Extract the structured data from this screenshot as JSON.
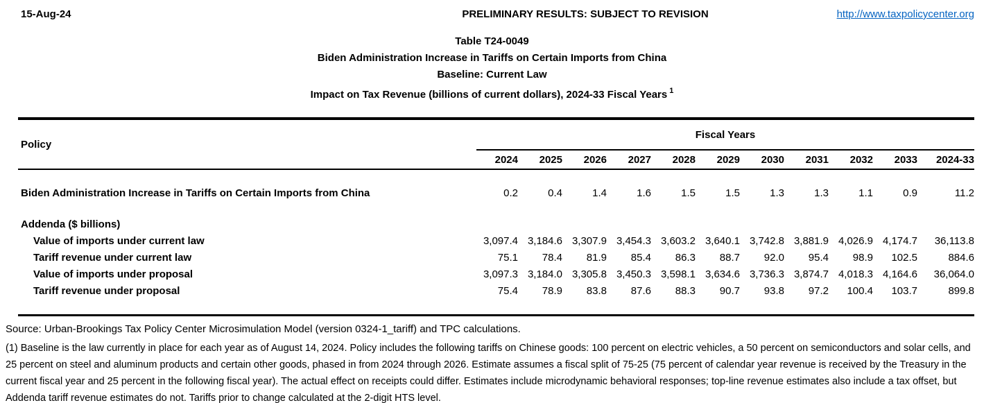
{
  "header": {
    "date": "15-Aug-24",
    "status": "PRELIMINARY RESULTS: SUBJECT TO REVISION",
    "link": "http://www.taxpolicycenter.org",
    "link_color": "#0563C1"
  },
  "title": {
    "line1": "Table T24-0049",
    "line2": "Biden Administration Increase in Tariffs on Certain Imports from China",
    "line3": "Baseline: Current Law",
    "line4": "Impact on Tax Revenue (billions of current dollars), 2024-33 Fiscal Years",
    "footnote_marker": "1"
  },
  "table": {
    "policy_header": "Policy",
    "group_header": "Fiscal Years",
    "columns": [
      "2024",
      "2025",
      "2026",
      "2027",
      "2028",
      "2029",
      "2030",
      "2031",
      "2032",
      "2033",
      "2024-33"
    ],
    "rows": [
      {
        "label": "Biden Administration Increase in Tariffs on Certain Imports from China",
        "style": "policy",
        "values": [
          "0.2",
          "0.4",
          "1.4",
          "1.6",
          "1.5",
          "1.5",
          "1.3",
          "1.3",
          "1.1",
          "0.9",
          "11.2"
        ]
      },
      {
        "label": "Addenda ($ billions)",
        "style": "section",
        "values": []
      },
      {
        "label": "Value of imports under current law",
        "style": "addendum",
        "values": [
          "3,097.4",
          "3,184.6",
          "3,307.9",
          "3,454.3",
          "3,603.2",
          "3,640.1",
          "3,742.8",
          "3,881.9",
          "4,026.9",
          "4,174.7",
          "36,113.8"
        ]
      },
      {
        "label": "Tariff revenue under current law",
        "style": "addendum",
        "values": [
          "75.1",
          "78.4",
          "81.9",
          "85.4",
          "86.3",
          "88.7",
          "92.0",
          "95.4",
          "98.9",
          "102.5",
          "884.6"
        ]
      },
      {
        "label": "Value of imports under proposal",
        "style": "addendum",
        "values": [
          "3,097.3",
          "3,184.0",
          "3,305.8",
          "3,450.3",
          "3,598.1",
          "3,634.6",
          "3,736.3",
          "3,874.7",
          "4,018.3",
          "4,164.6",
          "36,064.0"
        ]
      },
      {
        "label": "Tariff revenue under proposal",
        "style": "addendum",
        "values": [
          "75.4",
          "78.9",
          "83.8",
          "87.6",
          "88.3",
          "90.7",
          "93.8",
          "97.2",
          "100.4",
          "103.7",
          "899.8"
        ]
      }
    ]
  },
  "footer": {
    "source": "Source: Urban-Brookings Tax Policy Center Microsimulation Model (version 0324-1_tariff) and TPC calculations.",
    "footnote": "(1) Baseline is the law currently in place for each year as of August 14, 2024. Policy includes the following tariffs on Chinese goods: 100 percent on electric vehicles, a 50 percent on semiconductors and solar cells, and 25 percent on steel and aluminum products and certain other goods, phased in from 2024 through 2026. Estimate assumes a fiscal split of 75-25 (75 percent of calendar year revenue is received by the Treasury in the current fiscal year and 25 percent in the following fiscal year). The actual effect on receipts could differ. Estimates include microdynamic behavioral responses; top-line revenue estimates also include a tax offset, but Addenda tariff revenue estimates do not. Tariffs prior to change calculated at the 2-digit HTS level."
  }
}
